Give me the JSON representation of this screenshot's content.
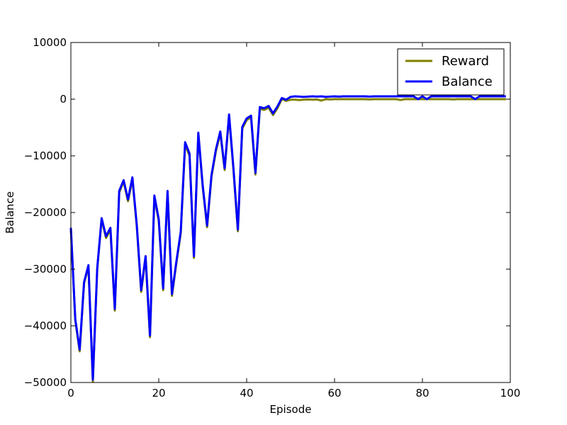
{
  "chart_data": {
    "type": "line",
    "title": "",
    "xlabel": "Episode",
    "ylabel": "Balance",
    "xlim": [
      0,
      100
    ],
    "ylim": [
      -50000,
      10000
    ],
    "x_ticks": [
      0,
      20,
      40,
      60,
      80,
      100
    ],
    "x_tick_labels": [
      "0",
      "20",
      "40",
      "60",
      "80",
      "100"
    ],
    "y_ticks": [
      10000,
      0,
      -10000,
      -20000,
      -30000,
      -40000,
      -50000
    ],
    "y_tick_labels": [
      "10000",
      "0",
      "−10000",
      "−20000",
      "−30000",
      "−40000",
      "−50000"
    ],
    "legend_position": "top-right",
    "grid": false,
    "x": [
      0,
      1,
      2,
      3,
      4,
      5,
      6,
      7,
      8,
      9,
      10,
      11,
      12,
      13,
      14,
      15,
      16,
      17,
      18,
      19,
      20,
      21,
      22,
      23,
      24,
      25,
      26,
      27,
      28,
      29,
      30,
      31,
      32,
      33,
      34,
      35,
      36,
      37,
      38,
      39,
      40,
      41,
      42,
      43,
      44,
      45,
      46,
      47,
      48,
      49,
      50,
      51,
      52,
      53,
      54,
      55,
      56,
      57,
      58,
      59,
      60,
      61,
      62,
      63,
      64,
      65,
      66,
      67,
      68,
      69,
      70,
      71,
      72,
      73,
      74,
      75,
      76,
      77,
      78,
      79,
      80,
      81,
      82,
      83,
      84,
      85,
      86,
      87,
      88,
      89,
      90,
      91,
      92,
      93,
      94,
      95,
      96,
      97,
      98,
      99
    ],
    "series": [
      {
        "name": "Reward",
        "color": "#808000",
        "values": [
          -23000,
          -39000,
          -44500,
          -32500,
          -29500,
          -49800,
          -30000,
          -21200,
          -24500,
          -23000,
          -37300,
          -16500,
          -14500,
          -18000,
          -14100,
          -22500,
          -34000,
          -28000,
          -42000,
          -17300,
          -21500,
          -33700,
          -16500,
          -34700,
          -29000,
          -23700,
          -8000,
          -10000,
          -28000,
          -6200,
          -15500,
          -22600,
          -13700,
          -9200,
          -6000,
          -12500,
          -3000,
          -12500,
          -23300,
          -5200,
          -3700,
          -3200,
          -13300,
          -1700,
          -1900,
          -1500,
          -2800,
          -1600,
          0,
          -300,
          -100,
          -100,
          -150,
          -100,
          -50,
          -100,
          -50,
          -250,
          0,
          -50,
          0,
          0,
          0,
          0,
          0,
          0,
          0,
          0,
          -50,
          0,
          0,
          0,
          0,
          0,
          0,
          -150,
          0,
          0,
          0,
          0,
          0,
          0,
          0,
          0,
          0,
          0,
          0,
          -50,
          0,
          0,
          0,
          0,
          0,
          0,
          0,
          0,
          0,
          0,
          0,
          0
        ]
      },
      {
        "name": "Balance",
        "color": "#0000ff",
        "values": [
          -22700,
          -38800,
          -44200,
          -32300,
          -29300,
          -49500,
          -29800,
          -21000,
          -24200,
          -22700,
          -37000,
          -16200,
          -14300,
          -17700,
          -13800,
          -22200,
          -33700,
          -27700,
          -41700,
          -17000,
          -21200,
          -33400,
          -16200,
          -34400,
          -28700,
          -23400,
          -7600,
          -9600,
          -27700,
          -5900,
          -15200,
          -22300,
          -13400,
          -8900,
          -5700,
          -12200,
          -2700,
          -12200,
          -23000,
          -4900,
          -3400,
          -2900,
          -13000,
          -1400,
          -1600,
          -1200,
          -2500,
          -1300,
          200,
          -100,
          400,
          500,
          450,
          400,
          450,
          500,
          450,
          500,
          400,
          450,
          500,
          450,
          500,
          500,
          500,
          500,
          500,
          500,
          450,
          500,
          500,
          500,
          500,
          500,
          500,
          500,
          500,
          500,
          500,
          0,
          500,
          0,
          500,
          500,
          500,
          500,
          500,
          500,
          500,
          500,
          500,
          500,
          0,
          500,
          500,
          500,
          500,
          500,
          500,
          500
        ]
      }
    ]
  }
}
